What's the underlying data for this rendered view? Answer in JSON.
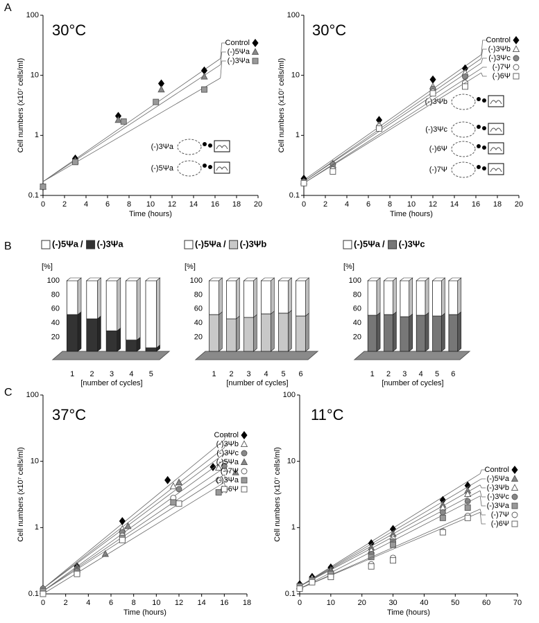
{
  "panels": [
    "A",
    "B",
    "C"
  ],
  "chart_data": [
    {
      "type": "growth",
      "annotation": "30°C",
      "xlabel": "Time (hours)",
      "ylabel": "Cell numbers (x10⁷ cells/ml)",
      "log_y": true,
      "xlim": [
        0,
        20
      ],
      "xticks": [
        0,
        2,
        4,
        6,
        8,
        10,
        12,
        14,
        16,
        18,
        20
      ],
      "ylim": [
        0.1,
        100
      ],
      "yticks": [
        0.1,
        1,
        10,
        100
      ],
      "fit_x": [
        0,
        16.5
      ],
      "schematics": [
        "(-)3Ψa",
        "(-)5Ψa"
      ],
      "series": [
        {
          "name": "Control",
          "marker": "diamond",
          "color": "#000000",
          "x": [
            0,
            3,
            7,
            11,
            15
          ],
          "values": [
            0.14,
            0.41,
            2.1,
            7.3,
            12
          ],
          "fit": [
            0.17,
            19
          ]
        },
        {
          "name": "(-)5Ψa",
          "marker": "triangle",
          "color": "#888888",
          "x": [
            0,
            3,
            7,
            11,
            15
          ],
          "values": [
            0.14,
            0.38,
            1.8,
            5.8,
            9.5
          ],
          "fit": [
            0.17,
            15
          ]
        },
        {
          "name": "(-)3Ψa",
          "marker": "square",
          "color": "#999999",
          "x": [
            0,
            3,
            7.5,
            10.5,
            15
          ],
          "values": [
            0.14,
            0.36,
            1.7,
            3.6,
            5.8
          ],
          "fit": [
            0.17,
            9
          ]
        }
      ]
    },
    {
      "type": "growth",
      "annotation": "30°C",
      "xlabel": "Time (hours)",
      "ylabel": "Cell numbers (x10⁷ cells/ml)",
      "log_y": true,
      "xlim": [
        0,
        20
      ],
      "xticks": [
        0,
        2,
        4,
        6,
        8,
        10,
        12,
        14,
        16,
        18,
        20
      ],
      "ylim": [
        0.1,
        100
      ],
      "yticks": [
        0.1,
        1,
        10,
        100
      ],
      "fit_x": [
        0,
        16.5
      ],
      "schematics": [
        "(-)3Ψb",
        "(-)3Ψc",
        "(-)6Ψ",
        "(-)7Ψ"
      ],
      "series": [
        {
          "name": "Control",
          "marker": "diamond",
          "color": "#000000",
          "x": [
            0,
            2.7,
            7,
            12,
            15
          ],
          "values": [
            0.19,
            0.33,
            1.8,
            8.5,
            13
          ],
          "fit": [
            0.18,
            22
          ]
        },
        {
          "name": "(-)3Ψb",
          "marker": "triangle",
          "color": "#ffffff",
          "x": [
            0,
            2.7,
            7,
            12,
            15
          ],
          "values": [
            0.17,
            0.32,
            1.5,
            6.5,
            11
          ],
          "fit": [
            0.17,
            19
          ]
        },
        {
          "name": "(-)3Ψc",
          "marker": "circle",
          "color": "#888888",
          "x": [
            0,
            2.7,
            7,
            12,
            15
          ],
          "values": [
            0.17,
            0.33,
            1.4,
            6,
            9.5
          ],
          "fit": [
            0.17,
            16
          ]
        },
        {
          "name": "(-)7Ψ",
          "marker": "circle",
          "color": "#ffffff",
          "x": [
            0,
            2.7,
            7,
            12,
            15
          ],
          "values": [
            0.16,
            0.27,
            1.4,
            5.3,
            7.5
          ],
          "fit": [
            0.16,
            13
          ]
        },
        {
          "name": "(-)6Ψ",
          "marker": "square",
          "color": "#ffffff",
          "x": [
            0,
            2.7,
            7,
            12,
            15
          ],
          "values": [
            0.16,
            0.25,
            1.3,
            5,
            6.5
          ],
          "fit": [
            0.16,
            11
          ]
        }
      ]
    },
    {
      "type": "bar3d",
      "legend_separator": "/",
      "ylabel": "[%]",
      "xlabel": "[number of cycles]",
      "categories": [
        "1",
        "2",
        "3",
        "4",
        "5"
      ],
      "ylim": [
        0,
        100
      ],
      "yticks": [
        20,
        40,
        60,
        80,
        100
      ],
      "series": [
        {
          "name": "(-)5Ψa",
          "color": "#ffffff",
          "values": [
            48,
            54,
            71,
            84,
            95
          ]
        },
        {
          "name": "(-)3Ψa",
          "color": "#333333",
          "values": [
            52,
            46,
            29,
            16,
            5
          ]
        }
      ]
    },
    {
      "type": "bar3d",
      "legend_separator": "/",
      "ylabel": "[%]",
      "xlabel": "[number of cycles]",
      "categories": [
        "1",
        "2",
        "3",
        "4",
        "5",
        "6"
      ],
      "ylim": [
        0,
        100
      ],
      "yticks": [
        20,
        40,
        60,
        80,
        100
      ],
      "series": [
        {
          "name": "(-)5Ψa",
          "color": "#ffffff",
          "values": [
            48,
            54,
            52,
            47,
            46,
            50
          ]
        },
        {
          "name": "(-)3Ψb",
          "color": "#c8c8c8",
          "values": [
            52,
            46,
            48,
            53,
            54,
            50
          ]
        }
      ]
    },
    {
      "type": "bar3d",
      "legend_separator": "/",
      "ylabel": "[%]",
      "xlabel": "[number of cycles]",
      "categories": [
        "1",
        "2",
        "3",
        "4",
        "5",
        "6"
      ],
      "ylim": [
        0,
        100
      ],
      "yticks": [
        20,
        40,
        60,
        80,
        100
      ],
      "series": [
        {
          "name": "(-)5Ψa",
          "color": "#ffffff",
          "values": [
            49,
            48,
            51,
            49,
            50,
            48
          ]
        },
        {
          "name": "(-)3Ψc",
          "color": "#777777",
          "values": [
            51,
            52,
            49,
            51,
            50,
            52
          ]
        }
      ]
    },
    {
      "type": "growth",
      "annotation": "37°C",
      "xlabel": "Time (hours)",
      "ylabel": "Cell numbers (x10⁷ cells/ml)",
      "log_y": true,
      "xlim": [
        0,
        18
      ],
      "xticks": [
        0,
        2,
        4,
        6,
        8,
        10,
        12,
        14,
        16,
        18
      ],
      "ylim": [
        0.1,
        100
      ],
      "yticks": [
        0.1,
        1,
        10,
        100
      ],
      "fit_x": [
        0,
        16
      ],
      "series": [
        {
          "name": "Control",
          "marker": "diamond",
          "color": "#000000",
          "x": [
            0,
            3,
            7,
            11,
            15
          ],
          "values": [
            0.12,
            0.26,
            1.25,
            5.2,
            8.2
          ],
          "fit": [
            0.12,
            21
          ]
        },
        {
          "name": "(-)3Ψb",
          "marker": "triangle",
          "color": "#ffffff",
          "x": [
            0,
            3,
            7,
            11.5,
            15.5
          ],
          "values": [
            0.12,
            0.25,
            0.95,
            4.2,
            8
          ],
          "fit": [
            0.12,
            16
          ]
        },
        {
          "name": "(-)3Ψc",
          "marker": "circle",
          "color": "#888888",
          "x": [
            0,
            3,
            7,
            12,
            16
          ],
          "values": [
            0.12,
            0.24,
            0.85,
            3.8,
            8.5
          ],
          "fit": [
            0.12,
            13
          ]
        },
        {
          "name": "(-)5Ψa",
          "marker": "triangle",
          "color": "#888888",
          "x": [
            0,
            3,
            5.5,
            7.5,
            12,
            17
          ],
          "values": [
            0.11,
            0.23,
            0.4,
            1.05,
            4.8,
            6.8
          ],
          "fit": [
            0.11,
            10.5
          ]
        },
        {
          "name": "(-)7Ψ",
          "marker": "circle",
          "color": "#ffffff",
          "x": [
            0,
            3,
            7,
            11.5,
            15.5
          ],
          "values": [
            0.11,
            0.22,
            0.75,
            2.8,
            5.2
          ],
          "fit": [
            0.11,
            8
          ]
        },
        {
          "name": "(-)3Ψa",
          "marker": "square",
          "color": "#999999",
          "x": [
            0,
            3,
            7,
            11.5,
            15.5
          ],
          "values": [
            0.11,
            0.21,
            0.7,
            2.4,
            3.4
          ],
          "fit": [
            0.11,
            6.3
          ]
        },
        {
          "name": "(-)6Ψ",
          "marker": "square",
          "color": "#ffffff",
          "x": [
            0,
            3,
            7,
            12,
            16
          ],
          "values": [
            0.1,
            0.2,
            0.65,
            2.3,
            3.8
          ],
          "fit": [
            0.1,
            4.8
          ]
        }
      ]
    },
    {
      "type": "growth",
      "annotation": "11°C",
      "xlabel": "Time (hours)",
      "ylabel": "Cell numbers (x10⁷ cells/ml)",
      "log_y": true,
      "xlim": [
        0,
        70
      ],
      "xticks": [
        0,
        10,
        20,
        30,
        40,
        50,
        60,
        70
      ],
      "ylim": [
        0.1,
        100
      ],
      "yticks": [
        0.1,
        1,
        10,
        100
      ],
      "fit_x": [
        0,
        58
      ],
      "series": [
        {
          "name": "Control",
          "marker": "diamond",
          "color": "#000000",
          "x": [
            0,
            4,
            10,
            23,
            30,
            46,
            54
          ],
          "values": [
            0.14,
            0.18,
            0.25,
            0.58,
            0.95,
            2.6,
            4.3
          ],
          "fit": [
            0.13,
            6.5
          ]
        },
        {
          "name": "(-)5Ψa",
          "marker": "triangle",
          "color": "#888888",
          "x": [
            0,
            4,
            10,
            23,
            30,
            46,
            54
          ],
          "values": [
            0.13,
            0.17,
            0.23,
            0.5,
            0.8,
            2.2,
            3.6
          ],
          "fit": [
            0.13,
            5.3
          ]
        },
        {
          "name": "(-)3Ψb",
          "marker": "triangle",
          "color": "#ffffff",
          "x": [
            0,
            4,
            10,
            23,
            30,
            46,
            54
          ],
          "values": [
            0.13,
            0.17,
            0.22,
            0.45,
            0.72,
            2,
            3.2
          ],
          "fit": [
            0.13,
            4.4
          ]
        },
        {
          "name": "(-)3Ψc",
          "marker": "circle",
          "color": "#888888",
          "x": [
            0,
            4,
            10,
            23,
            30,
            46,
            54
          ],
          "values": [
            0.13,
            0.16,
            0.21,
            0.4,
            0.62,
            1.7,
            2.5
          ],
          "fit": [
            0.13,
            3.6
          ]
        },
        {
          "name": "(-)3Ψa",
          "marker": "square",
          "color": "#999999",
          "x": [
            0,
            4,
            10,
            23,
            30,
            46,
            54
          ],
          "values": [
            0.13,
            0.16,
            0.2,
            0.36,
            0.55,
            1.4,
            2
          ],
          "fit": [
            0.12,
            3
          ]
        },
        {
          "name": "(-)7Ψ",
          "marker": "circle",
          "color": "#ffffff",
          "x": [
            0,
            4,
            10,
            23,
            30,
            46,
            54
          ],
          "values": [
            0.12,
            0.15,
            0.18,
            0.28,
            0.35,
            0.88,
            1.5
          ],
          "fit": [
            0.12,
            1.9
          ]
        },
        {
          "name": "(-)6Ψ",
          "marker": "square",
          "color": "#ffffff",
          "x": [
            0,
            4,
            10,
            23,
            30,
            46,
            54
          ],
          "values": [
            0.12,
            0.15,
            0.18,
            0.26,
            0.32,
            0.85,
            1.4
          ],
          "fit": [
            0.12,
            1.7
          ]
        }
      ]
    }
  ]
}
